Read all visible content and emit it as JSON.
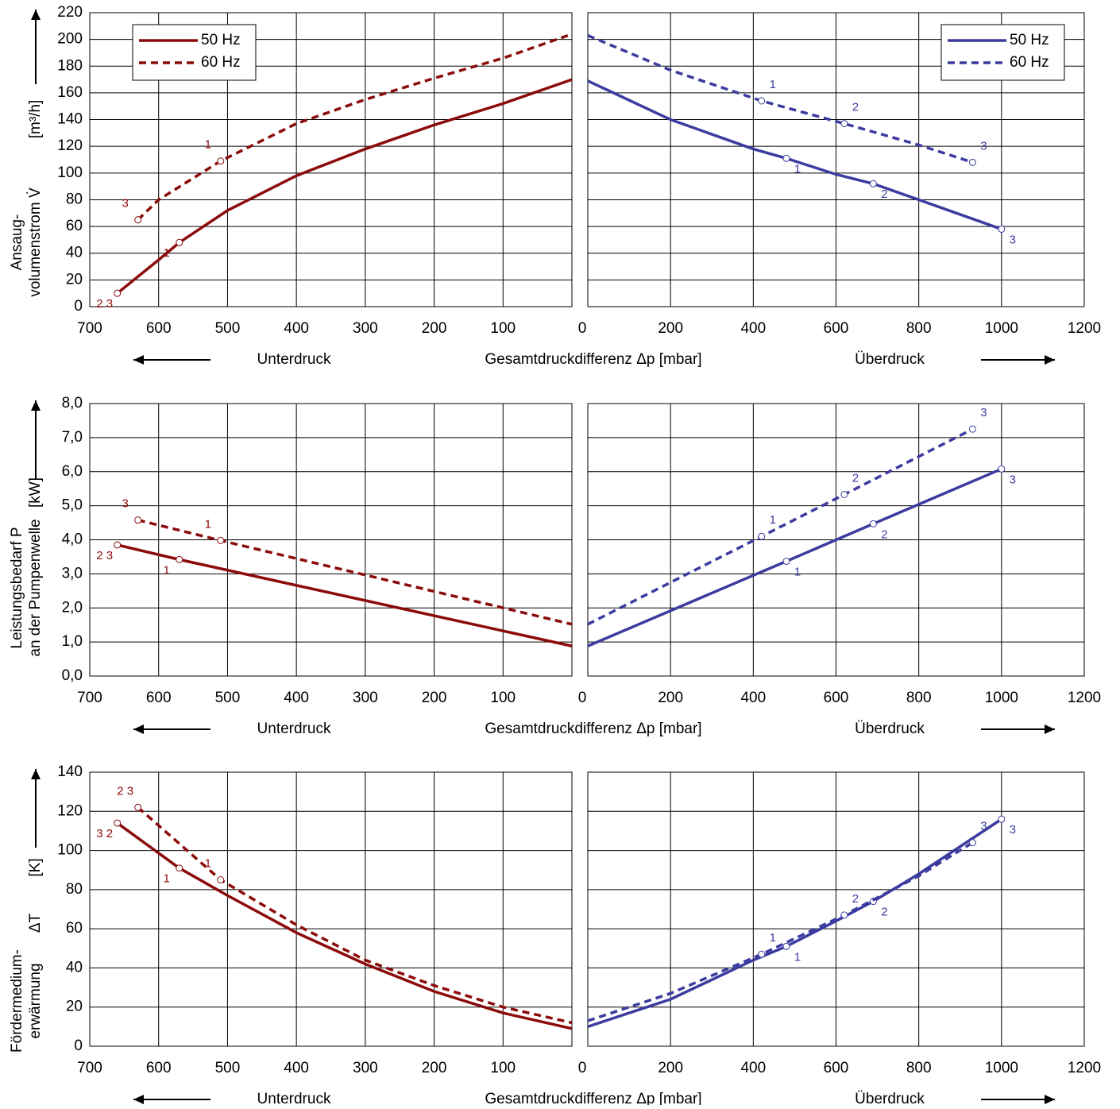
{
  "chart_data": [
    {
      "type": "line",
      "xlim": [
        700,
        0
      ],
      "xticks": [
        700,
        600,
        500,
        400,
        300,
        200,
        100
      ],
      "ylim": [
        0,
        220
      ],
      "yticks": [
        0,
        20,
        40,
        60,
        80,
        100,
        120,
        140,
        160,
        180,
        200,
        220
      ],
      "y_label": [
        "Ansaug-",
        "volumenstrom V̇"
      ],
      "y_unit": "[m³/h]",
      "x_label": "Gesamtdruckdifferenz Δp [mbar]",
      "x_note": "Unterdruck",
      "legend": "upper left",
      "grid": true,
      "series": [
        {
          "name": "50 Hz",
          "color": "#8b0a0a",
          "dash": false,
          "x": [
            660,
            600,
            570,
            500,
            400,
            300,
            200,
            100,
            0
          ],
          "values": [
            10,
            35,
            48,
            72,
            98,
            118,
            136,
            152,
            170
          ],
          "marker_x": [
            660,
            570
          ],
          "marker_values": [
            10,
            48
          ],
          "marker_labels": [
            "2 3",
            "1"
          ]
        },
        {
          "name": "60 Hz",
          "color": "#8b0a0a",
          "dash": true,
          "x": [
            630,
            600,
            510,
            400,
            300,
            200,
            100,
            0
          ],
          "values": [
            65,
            80,
            109,
            137,
            155,
            171,
            186,
            204
          ],
          "marker_x": [
            630,
            510
          ],
          "marker_values": [
            65,
            109
          ],
          "marker_labels": [
            "3",
            "1"
          ]
        }
      ]
    },
    {
      "type": "line",
      "xlim": [
        0,
        1200
      ],
      "xticks": [
        0,
        200,
        400,
        600,
        800,
        1000,
        1200
      ],
      "ylim": [
        0,
        220
      ],
      "yticks": [
        0,
        20,
        40,
        60,
        80,
        100,
        120,
        140,
        160,
        180,
        200,
        220
      ],
      "x_note": "Überdruck",
      "legend": "upper right",
      "grid": true,
      "series": [
        {
          "name": "50 Hz",
          "color": "#3c3ca0",
          "dash": false,
          "x": [
            0,
            200,
            400,
            480,
            600,
            690,
            800,
            1000
          ],
          "values": [
            169,
            140,
            118,
            111,
            99,
            92,
            80,
            58
          ],
          "marker_x": [
            480,
            690,
            1000
          ],
          "marker_values": [
            111,
            92,
            58
          ],
          "marker_labels": [
            "1",
            "2",
            "3"
          ]
        },
        {
          "name": "60 Hz",
          "color": "#3c3ca0",
          "dash": true,
          "x": [
            0,
            200,
            420,
            620,
            800,
            930
          ],
          "values": [
            203,
            177,
            154,
            137,
            121,
            108
          ],
          "marker_x": [
            420,
            620,
            930
          ],
          "marker_values": [
            154,
            137,
            108
          ],
          "marker_labels": [
            "1",
            "2",
            "3"
          ]
        }
      ]
    },
    {
      "type": "line",
      "xlim": [
        700,
        0
      ],
      "xticks": [
        700,
        600,
        500,
        400,
        300,
        200,
        100
      ],
      "ylim": [
        0,
        8
      ],
      "yticks": [
        {
          "value": 0,
          "label": "0,0"
        },
        {
          "value": 1,
          "label": "1,0"
        },
        {
          "value": 2,
          "label": "2,0"
        },
        {
          "value": 3,
          "label": "3,0"
        },
        {
          "value": 4,
          "label": "4,0"
        },
        {
          "value": 5,
          "label": "5,0"
        },
        {
          "value": 6,
          "label": "6,0"
        },
        {
          "value": 7,
          "label": "7,0"
        },
        {
          "value": 8,
          "label": "8,0"
        }
      ],
      "y_label": [
        "Leistungsbedarf P",
        "an der Pumpenwelle"
      ],
      "y_unit": "[kW]",
      "x_label": "Gesamtdruckdifferenz Δp [mbar]",
      "x_note": "Unterdruck",
      "grid": true,
      "series": [
        {
          "color": "#8b0a0a",
          "dash": false,
          "x": [
            660,
            570,
            0
          ],
          "values": [
            3.85,
            3.42,
            0.88
          ],
          "marker_x": [
            660,
            570
          ],
          "marker_values": [
            3.85,
            3.42
          ],
          "marker_labels": [
            "2 3",
            "1"
          ]
        },
        {
          "color": "#8b0a0a",
          "dash": true,
          "x": [
            630,
            510,
            0
          ],
          "values": [
            4.58,
            3.98,
            1.52
          ],
          "marker_x": [
            630,
            510
          ],
          "marker_values": [
            4.58,
            3.98
          ],
          "marker_labels": [
            "3",
            "1"
          ]
        }
      ]
    },
    {
      "type": "line",
      "xlim": [
        0,
        1200
      ],
      "xticks": [
        0,
        200,
        400,
        600,
        800,
        1000,
        1200
      ],
      "ylim": [
        0,
        8
      ],
      "yticks": [
        {
          "value": 0,
          "label": "0,0"
        },
        {
          "value": 1,
          "label": "1,0"
        },
        {
          "value": 2,
          "label": "2,0"
        },
        {
          "value": 3,
          "label": "3,0"
        },
        {
          "value": 4,
          "label": "4,0"
        },
        {
          "value": 5,
          "label": "5,0"
        },
        {
          "value": 6,
          "label": "6,0"
        },
        {
          "value": 7,
          "label": "7,0"
        },
        {
          "value": 8,
          "label": "8,0"
        }
      ],
      "x_note": "Überdruck",
      "grid": true,
      "series": [
        {
          "color": "#3c3ca0",
          "dash": false,
          "x": [
            0,
            480,
            690,
            1000
          ],
          "values": [
            0.88,
            3.37,
            4.47,
            6.08
          ],
          "marker_x": [
            480,
            690,
            1000
          ],
          "marker_values": [
            3.37,
            4.47,
            6.08
          ],
          "marker_labels": [
            "1",
            "2",
            "3"
          ]
        },
        {
          "color": "#3c3ca0",
          "dash": true,
          "x": [
            0,
            420,
            620,
            930
          ],
          "values": [
            1.52,
            4.1,
            5.33,
            7.25
          ],
          "marker_x": [
            420,
            620,
            930
          ],
          "marker_values": [
            4.1,
            5.33,
            7.25
          ],
          "marker_labels": [
            "1",
            "2",
            "3"
          ]
        }
      ]
    },
    {
      "type": "line",
      "xlim": [
        700,
        0
      ],
      "xticks": [
        700,
        600,
        500,
        400,
        300,
        200,
        100
      ],
      "ylim": [
        0,
        140
      ],
      "yticks": [
        0,
        20,
        40,
        60,
        80,
        100,
        120,
        140
      ],
      "y_label": [
        "Fördermedium-",
        "erwärmung"
      ],
      "y_symbol": "ΔT",
      "y_unit": "[K]",
      "x_label": "Gesamtdruckdifferenz Δp [mbar]",
      "x_note": "Unterdruck",
      "grid": true,
      "series": [
        {
          "color": "#8b0a0a",
          "dash": false,
          "x": [
            660,
            570,
            500,
            400,
            300,
            200,
            100,
            0
          ],
          "values": [
            114,
            91,
            77,
            58,
            42,
            28,
            17,
            9
          ],
          "marker_x": [
            660,
            570
          ],
          "marker_values": [
            114,
            91
          ],
          "marker_labels": [
            "3 2",
            "1"
          ]
        },
        {
          "color": "#8b0a0a",
          "dash": true,
          "x": [
            630,
            510,
            400,
            300,
            200,
            100,
            0
          ],
          "values": [
            122,
            85,
            62,
            44,
            31,
            20,
            12
          ],
          "marker_x": [
            630,
            510
          ],
          "marker_values": [
            122,
            85
          ],
          "marker_labels": [
            "2 3",
            "1"
          ]
        }
      ]
    },
    {
      "type": "line",
      "xlim": [
        0,
        1200
      ],
      "xticks": [
        0,
        200,
        400,
        600,
        800,
        1000,
        1200
      ],
      "ylim": [
        0,
        140
      ],
      "yticks": [
        0,
        20,
        40,
        60,
        80,
        100,
        120,
        140
      ],
      "x_note": "Überdruck",
      "grid": true,
      "series": [
        {
          "color": "#3c3ca0",
          "dash": false,
          "x": [
            0,
            200,
            400,
            480,
            600,
            690,
            800,
            1000
          ],
          "values": [
            10,
            24,
            44,
            51,
            64,
            74,
            88,
            116
          ],
          "marker_x": [
            480,
            690,
            1000
          ],
          "marker_values": [
            51,
            74,
            116
          ],
          "marker_labels": [
            "1",
            "2",
            "3"
          ]
        },
        {
          "color": "#3c3ca0",
          "dash": true,
          "x": [
            0,
            200,
            420,
            620,
            800,
            930
          ],
          "values": [
            13,
            27,
            47,
            67,
            87,
            104
          ],
          "marker_x": [
            420,
            620,
            930
          ],
          "marker_values": [
            47,
            67,
            104
          ],
          "marker_labels": [
            "1",
            "2",
            "3"
          ]
        }
      ]
    }
  ]
}
